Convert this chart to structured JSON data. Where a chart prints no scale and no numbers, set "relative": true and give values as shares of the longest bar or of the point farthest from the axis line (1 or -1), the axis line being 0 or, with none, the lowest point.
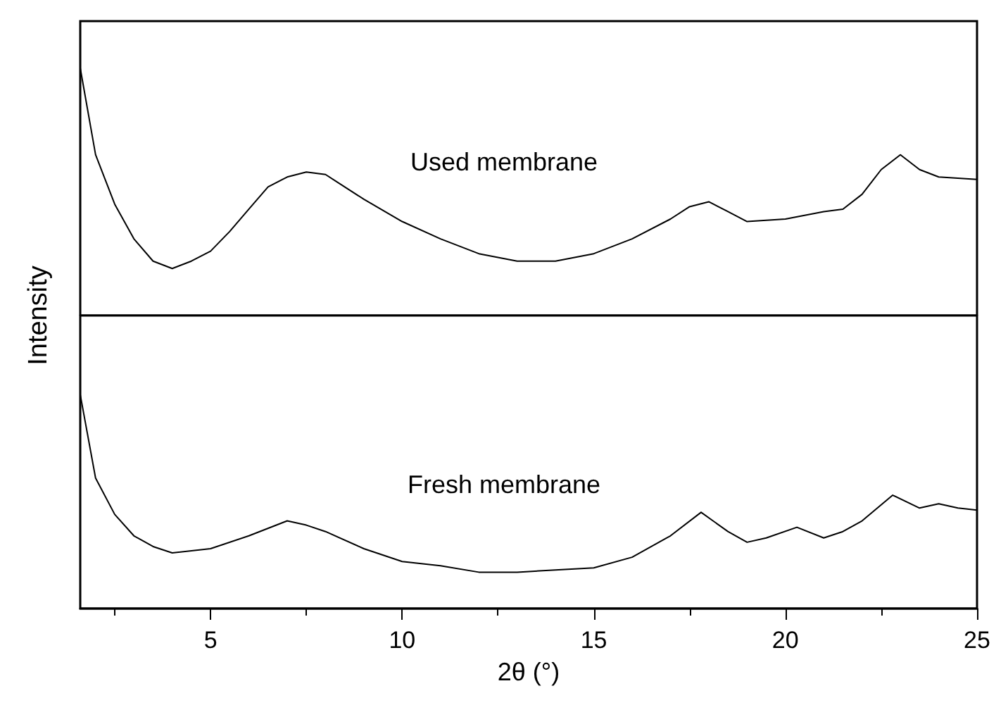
{
  "chart_data": [
    {
      "type": "line",
      "ylabel": "Intensity",
      "relative": true,
      "tick_labels": false,
      "xlim": [
        1.6,
        25
      ],
      "x": [
        1.6,
        2,
        2.5,
        3,
        3.5,
        4,
        4.5,
        5,
        5.5,
        6,
        6.5,
        7,
        7.5,
        8,
        8.5,
        9,
        10,
        11,
        12,
        13,
        14,
        15,
        16,
        17,
        17.5,
        18,
        18.5,
        19,
        20,
        21,
        21.5,
        22,
        22.5,
        23,
        23.5,
        24,
        25
      ],
      "series": [
        {
          "name": "Used membrane",
          "color": "#000000",
          "values": [
            1,
            0.65,
            0.45,
            0.31,
            0.22,
            0.19,
            0.22,
            0.26,
            0.34,
            0.43,
            0.52,
            0.56,
            0.58,
            0.57,
            0.52,
            0.47,
            0.38,
            0.31,
            0.25,
            0.22,
            0.22,
            0.25,
            0.31,
            0.39,
            0.44,
            0.46,
            0.42,
            0.38,
            0.39,
            0.42,
            0.43,
            0.49,
            0.59,
            0.65,
            0.59,
            0.56,
            0.55
          ]
        }
      ]
    },
    {
      "type": "line",
      "xlabel": "2θ (°)",
      "relative": true,
      "tick_labels": "x",
      "xlim": [
        1.6,
        25
      ],
      "xticks": [
        {
          "value": 2.5,
          "label": null
        },
        5,
        {
          "value": 7.5,
          "label": null
        },
        10,
        {
          "value": 12.5,
          "label": null
        },
        15,
        {
          "value": 17.5,
          "label": null
        },
        20,
        {
          "value": 22.5,
          "label": null
        },
        25
      ],
      "x": [
        1.6,
        2,
        2.5,
        3,
        3.5,
        4,
        5,
        6,
        7,
        7.5,
        8,
        9,
        10,
        11,
        12,
        13,
        14,
        15,
        16,
        17,
        17.8,
        18.5,
        19,
        19.5,
        20.3,
        21,
        21.5,
        22,
        22.8,
        23.5,
        24,
        24.5,
        25
      ],
      "series": [
        {
          "name": "Fresh membrane",
          "color": "#000000",
          "values": [
            1,
            0.61,
            0.44,
            0.34,
            0.29,
            0.26,
            0.28,
            0.34,
            0.41,
            0.39,
            0.36,
            0.28,
            0.22,
            0.2,
            0.17,
            0.17,
            0.18,
            0.19,
            0.24,
            0.34,
            0.45,
            0.36,
            0.31,
            0.33,
            0.38,
            0.33,
            0.36,
            0.41,
            0.53,
            0.47,
            0.49,
            0.47,
            0.46
          ]
        }
      ]
    }
  ]
}
